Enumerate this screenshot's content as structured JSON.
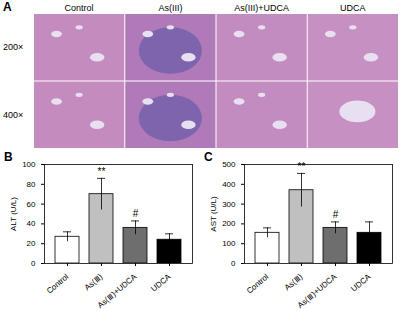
{
  "panel_a": {
    "label": "A",
    "columns": [
      "Control",
      "As(III)",
      "As(III)+UDCA",
      "UDCA"
    ],
    "rows": [
      "200×",
      "400×"
    ]
  },
  "chart_data": [
    {
      "panel": "B",
      "type": "bar",
      "categories": [
        "Control",
        "As(Ⅲ)",
        "As(Ⅲ)+UDCA",
        "UDCA"
      ],
      "values": [
        27,
        70,
        36,
        24
      ],
      "errors": [
        5,
        16,
        7,
        6
      ],
      "colors": [
        "#ffffff",
        "#c0c0c0",
        "#6e6e6e",
        "#000000"
      ],
      "ylabel": "ALT (U/L)",
      "ylim": [
        0,
        100
      ],
      "yticks": [
        0,
        20,
        40,
        60,
        80,
        100
      ],
      "annotations": [
        {
          "x": "As(Ⅲ)",
          "text": "**"
        },
        {
          "x": "As(Ⅲ)+UDCA",
          "text": "#"
        }
      ]
    },
    {
      "panel": "C",
      "type": "bar",
      "categories": [
        "Control",
        "As(Ⅲ)",
        "As(Ⅲ)+UDCA",
        "UDCA"
      ],
      "values": [
        155,
        370,
        180,
        155
      ],
      "errors": [
        25,
        85,
        30,
        55
      ],
      "colors": [
        "#ffffff",
        "#c0c0c0",
        "#6e6e6e",
        "#000000"
      ],
      "ylabel": "AST (U/L)",
      "ylim": [
        0,
        500
      ],
      "yticks": [
        0,
        100,
        200,
        300,
        400,
        500
      ],
      "annotations": [
        {
          "x": "As(Ⅲ)",
          "text": "**"
        },
        {
          "x": "As(Ⅲ)+UDCA",
          "text": "#"
        }
      ]
    }
  ]
}
